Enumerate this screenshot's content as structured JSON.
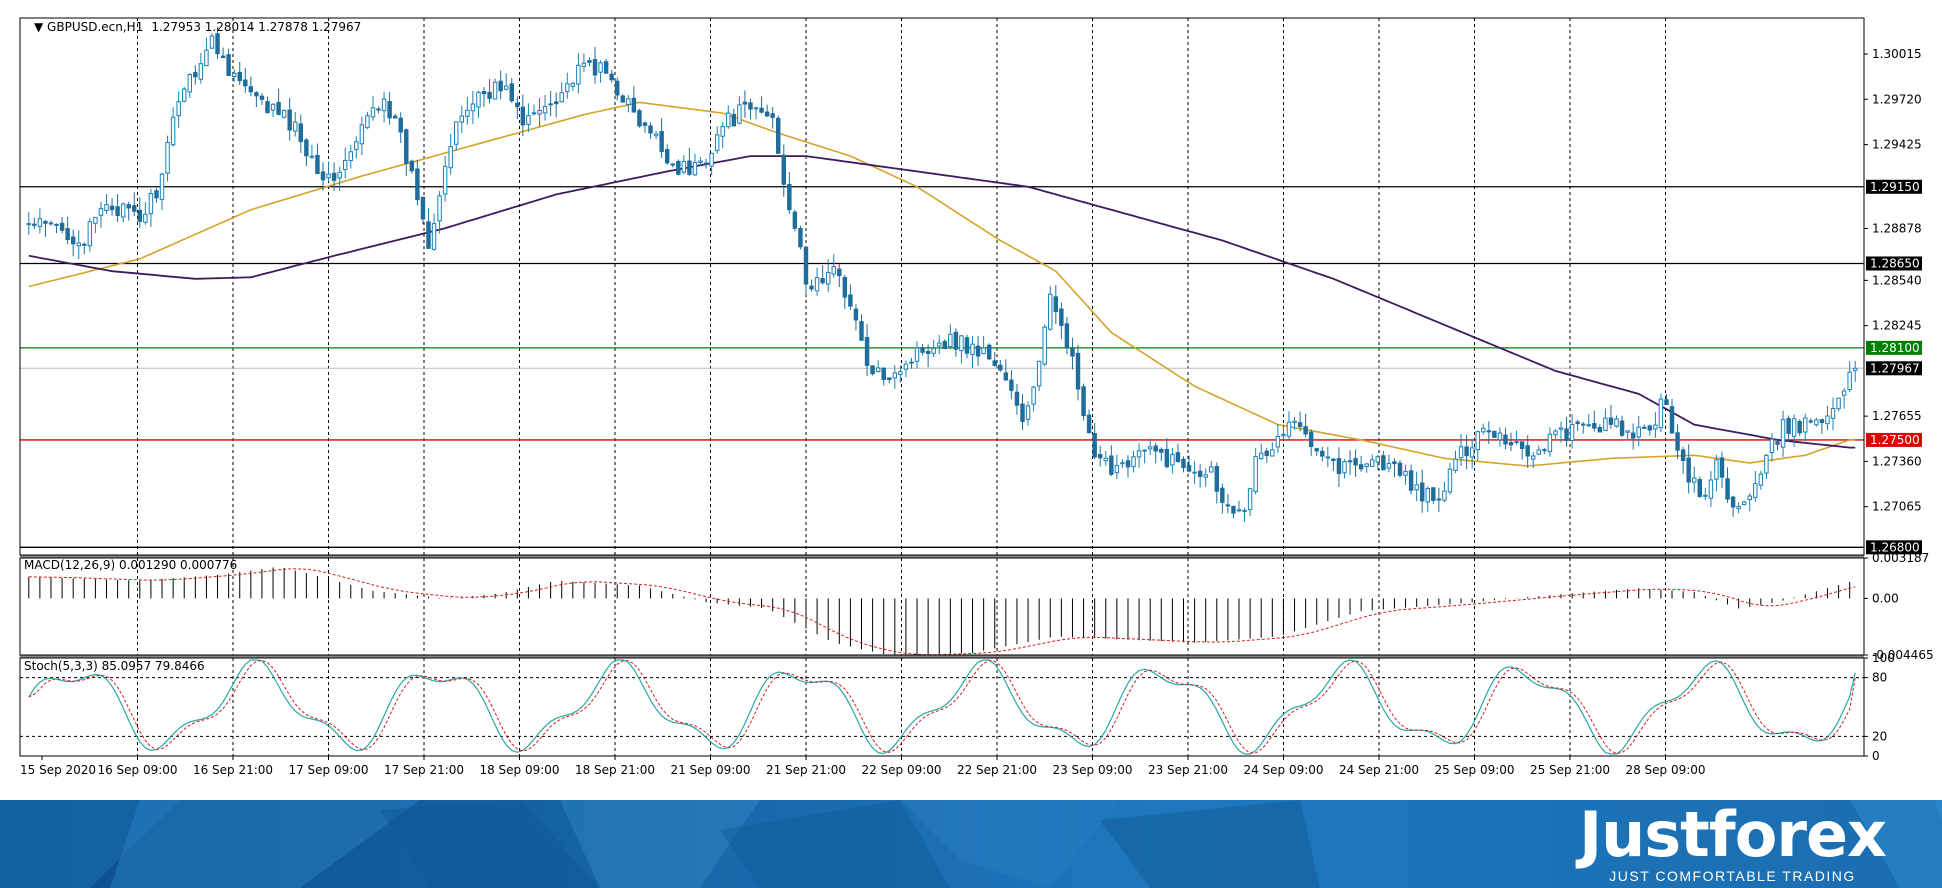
{
  "header": {
    "symbol_label": "GBPUSD.ecn,H1",
    "ohlc": "1.27953 1.28014 1.27878 1.27967"
  },
  "chart_data": {
    "type": "candlestick",
    "symbol": "GBPUSD.ecn",
    "timeframe": "H1",
    "ohlc_last": {
      "open": 1.27953,
      "high": 1.28014,
      "low": 1.27878,
      "close": 1.27967
    },
    "ylim": [
      1.2675,
      1.3025
    ],
    "y_ticks": [
      "1.30015",
      "1.29720",
      "1.29425",
      "1.28878",
      "1.28540",
      "1.28245",
      "1.27655",
      "1.27360",
      "1.27065"
    ],
    "x_ticks": [
      "15 Sep 2020",
      "16 Sep 09:00",
      "16 Sep 21:00",
      "17 Sep 09:00",
      "17 Sep 21:00",
      "18 Sep 09:00",
      "18 Sep 21:00",
      "21 Sep 09:00",
      "21 Sep 21:00",
      "22 Sep 09:00",
      "22 Sep 21:00",
      "23 Sep 09:00",
      "23 Sep 21:00",
      "24 Sep 09:00",
      "24 Sep 21:00",
      "25 Sep 09:00",
      "25 Sep 21:00",
      "28 Sep 09:00"
    ],
    "levels": [
      {
        "price": 1.2915,
        "label": "1.29150",
        "color": "#000000"
      },
      {
        "price": 1.2865,
        "label": "1.28650",
        "color": "#000000"
      },
      {
        "price": 1.281,
        "label": "1.28100",
        "color": "#008000"
      },
      {
        "price": 1.275,
        "label": "1.27500",
        "color": "#e00000"
      },
      {
        "price": 1.268,
        "label": "1.26800",
        "color": "#000000"
      }
    ],
    "bid_label": "1.27967",
    "anchors": [
      [
        0,
        1.289
      ],
      [
        5,
        1.2888
      ],
      [
        10,
        1.288
      ],
      [
        14,
        1.2905
      ],
      [
        20,
        1.2893
      ],
      [
        24,
        1.292
      ],
      [
        27,
        1.2975
      ],
      [
        30,
        1.2992
      ],
      [
        33,
        1.301
      ],
      [
        37,
        1.2988
      ],
      [
        41,
        1.297
      ],
      [
        45,
        1.2963
      ],
      [
        48,
        1.2953
      ],
      [
        51,
        1.2935
      ],
      [
        54,
        1.2918
      ],
      [
        58,
        1.2935
      ],
      [
        61,
        1.296
      ],
      [
        64,
        1.2975
      ],
      [
        67,
        1.2945
      ],
      [
        70,
        1.291
      ],
      [
        72,
        1.288
      ],
      [
        75,
        1.293
      ],
      [
        78,
        1.2962
      ],
      [
        81,
        1.2975
      ],
      [
        84,
        1.298
      ],
      [
        87,
        1.2975
      ],
      [
        89,
        1.2955
      ],
      [
        92,
        1.2965
      ],
      [
        95,
        1.2975
      ],
      [
        98,
        1.2985
      ],
      [
        101,
        1.2995
      ],
      [
        104,
        1.2988
      ],
      [
        107,
        1.2975
      ],
      [
        110,
        1.2955
      ],
      [
        113,
        1.2945
      ],
      [
        116,
        1.293
      ],
      [
        119,
        1.2925
      ],
      [
        122,
        1.2935
      ],
      [
        125,
        1.2955
      ],
      [
        128,
        1.2963
      ],
      [
        131,
        1.2965
      ],
      [
        134,
        1.296
      ],
      [
        136,
        1.292
      ],
      [
        138,
        1.289
      ],
      [
        140,
        1.285
      ],
      [
        143,
        1.2855
      ],
      [
        146,
        1.286
      ],
      [
        149,
        1.2825
      ],
      [
        152,
        1.279
      ],
      [
        155,
        1.2795
      ],
      [
        158,
        1.28
      ],
      [
        161,
        1.281
      ],
      [
        164,
        1.2815
      ],
      [
        167,
        1.2815
      ],
      [
        170,
        1.281
      ],
      [
        173,
        1.2805
      ],
      [
        176,
        1.279
      ],
      [
        179,
        1.276
      ],
      [
        182,
        1.28
      ],
      [
        184,
        1.284
      ],
      [
        186,
        1.283
      ],
      [
        188,
        1.28
      ],
      [
        190,
        1.2765
      ],
      [
        192,
        1.2735
      ],
      [
        195,
        1.2733
      ],
      [
        198,
        1.2738
      ],
      [
        201,
        1.2742
      ],
      [
        204,
        1.274
      ],
      [
        207,
        1.2735
      ],
      [
        210,
        1.2733
      ],
      [
        213,
        1.273
      ],
      [
        216,
        1.2705
      ],
      [
        219,
        1.271
      ],
      [
        221,
        1.2735
      ],
      [
        224,
        1.2745
      ],
      [
        227,
        1.276
      ],
      [
        230,
        1.2755
      ],
      [
        233,
        1.2745
      ],
      [
        236,
        1.2732
      ],
      [
        239,
        1.2735
      ],
      [
        242,
        1.2738
      ],
      [
        245,
        1.2733
      ],
      [
        248,
        1.2725
      ],
      [
        251,
        1.2715
      ],
      [
        254,
        1.2708
      ],
      [
        256,
        1.273
      ],
      [
        259,
        1.2745
      ],
      [
        262,
        1.276
      ],
      [
        265,
        1.2753
      ],
      [
        268,
        1.2748
      ],
      [
        271,
        1.274
      ],
      [
        274,
        1.2752
      ],
      [
        277,
        1.2755
      ],
      [
        280,
        1.2757
      ],
      [
        283,
        1.276
      ],
      [
        286,
        1.2758
      ],
      [
        289,
        1.2752
      ],
      [
        292,
        1.2755
      ],
      [
        294,
        1.2775
      ],
      [
        296,
        1.276
      ],
      [
        298,
        1.2735
      ],
      [
        300,
        1.272
      ],
      [
        302,
        1.2712
      ],
      [
        304,
        1.2735
      ],
      [
        306,
        1.2715
      ],
      [
        308,
        1.2705
      ],
      [
        310,
        1.2712
      ],
      [
        312,
        1.2725
      ],
      [
        314,
        1.2745
      ],
      [
        316,
        1.2758
      ],
      [
        318,
        1.2758
      ],
      [
        320,
        1.276
      ],
      [
        322,
        1.2766
      ],
      [
        324,
        1.2768
      ],
      [
        326,
        1.2772
      ],
      [
        328,
        1.2796
      ]
    ],
    "ma_fast_anchors": [
      [
        0,
        1.285
      ],
      [
        20,
        1.2868
      ],
      [
        40,
        1.29
      ],
      [
        60,
        1.2922
      ],
      [
        80,
        1.2942
      ],
      [
        100,
        1.2962
      ],
      [
        110,
        1.297
      ],
      [
        125,
        1.2963
      ],
      [
        135,
        1.295
      ],
      [
        148,
        1.2935
      ],
      [
        160,
        1.2915
      ],
      [
        175,
        1.288
      ],
      [
        185,
        1.286
      ],
      [
        195,
        1.282
      ],
      [
        210,
        1.2785
      ],
      [
        225,
        1.276
      ],
      [
        240,
        1.275
      ],
      [
        255,
        1.2738
      ],
      [
        270,
        1.2733
      ],
      [
        285,
        1.2738
      ],
      [
        300,
        1.274
      ],
      [
        310,
        1.2735
      ],
      [
        320,
        1.274
      ],
      [
        328,
        1.275
      ]
    ],
    "ma_slow_anchors": [
      [
        0,
        1.287
      ],
      [
        15,
        1.286
      ],
      [
        30,
        1.2855
      ],
      [
        40,
        1.2856
      ],
      [
        55,
        1.287
      ],
      [
        75,
        1.2888
      ],
      [
        95,
        1.291
      ],
      [
        115,
        1.2925
      ],
      [
        130,
        1.2935
      ],
      [
        140,
        1.2935
      ],
      [
        160,
        1.2925
      ],
      [
        180,
        1.2915
      ],
      [
        195,
        1.29
      ],
      [
        215,
        1.288
      ],
      [
        235,
        1.2855
      ],
      [
        255,
        1.2825
      ],
      [
        275,
        1.2795
      ],
      [
        290,
        1.278
      ],
      [
        300,
        1.276
      ],
      [
        315,
        1.275
      ],
      [
        328,
        1.2745
      ]
    ],
    "colors": {
      "bull": "#1a80b6",
      "bear": "#1e6d9c",
      "ma_fast": "#d4a42a",
      "ma_slow": "#3e1a5e",
      "grid": "#000000"
    },
    "macd": {
      "label": "MACD(12,26,9) 0.001290 0.000776",
      "ylim": [
        -0.004465,
        0.003187
      ],
      "y_ticks": [
        "0.003187",
        "0.00",
        "-0.004465"
      ],
      "hist_anchors": [
        [
          0,
          0.0017
        ],
        [
          20,
          0.0014
        ],
        [
          35,
          0.0019
        ],
        [
          45,
          0.0025
        ],
        [
          50,
          0.002
        ],
        [
          62,
          0.0006
        ],
        [
          75,
          0.0
        ],
        [
          85,
          0.0004
        ],
        [
          95,
          0.0014
        ],
        [
          110,
          0.001
        ],
        [
          122,
          -0.0003
        ],
        [
          133,
          -0.0008
        ],
        [
          145,
          -0.0035
        ],
        [
          155,
          -0.0045
        ],
        [
          170,
          -0.0043
        ],
        [
          185,
          -0.003
        ],
        [
          200,
          -0.0033
        ],
        [
          210,
          -0.0035
        ],
        [
          225,
          -0.003
        ],
        [
          240,
          -0.001
        ],
        [
          255,
          -0.0005
        ],
        [
          275,
          0.0003
        ],
        [
          290,
          0.0008
        ],
        [
          300,
          0.0005
        ],
        [
          308,
          -0.0008
        ],
        [
          315,
          -0.0003
        ],
        [
          328,
          0.0013
        ]
      ],
      "signal_lag": 8
    },
    "stoch": {
      "label": "Stoch(5,3,3) 85.0957 79.8466",
      "ylim": [
        0,
        100
      ],
      "y_ticks": [
        "100",
        "80",
        "20",
        "0"
      ],
      "levels": [
        80,
        20
      ]
    }
  },
  "banner": {
    "brand": "Justforex",
    "tagline": "JUST COMFORTABLE TRADING"
  }
}
